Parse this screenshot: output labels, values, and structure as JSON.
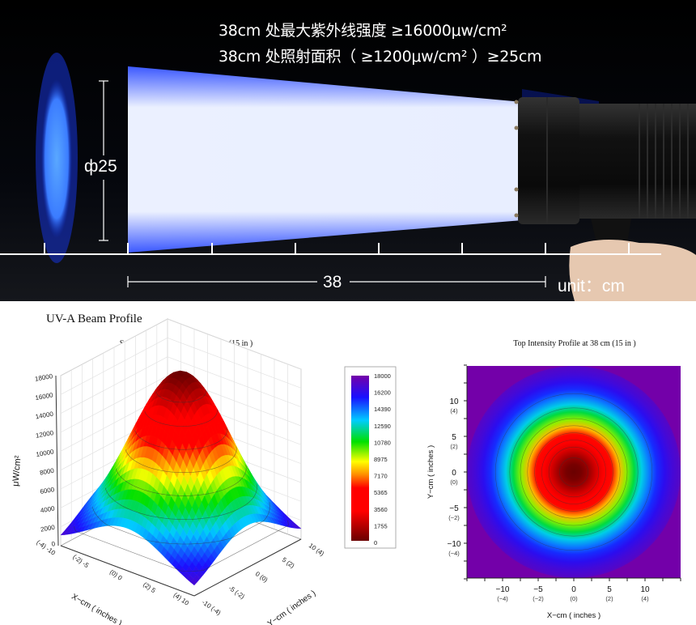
{
  "banner": {
    "spec_line_1": "38cm 处最大紫外线强度 ≥16000μw/cm²",
    "spec_line_2": "38cm 处照射面积（ ≥1200μw/cm² ）≥25cm",
    "diameter_label": "ф25",
    "distance_label": "38",
    "unit_label": "unit：cm",
    "beam_color": "#1a4cff"
  },
  "section_title": "UV-A Beam Profile",
  "chart_data": [
    {
      "type": "surface",
      "title": "Surface Contour Profile at 38 cm (15 in )",
      "zlabel": "μW/cm²",
      "xlabel": "X−cm ( inches )",
      "ylabel": "Y−cm ( inches )",
      "zlim": [
        0,
        18000
      ],
      "z_ticks": [
        "0",
        "2000",
        "4000",
        "6000",
        "8000",
        "10000",
        "12000",
        "14000",
        "16000",
        "18000"
      ],
      "x_ticks": [
        "(-4) -10",
        "(-2) -5",
        "(0) 0",
        "(2) 5",
        "(4) 10"
      ],
      "y_ticks": [
        "-10 (-4)",
        "-5 (-2)",
        "0 (0)",
        "5 (2)",
        "10 (4)"
      ],
      "xlim": [
        -10,
        10
      ],
      "ylim": [
        -10,
        10
      ],
      "peak": 18000,
      "peak_at": [
        0,
        0
      ],
      "sigma_cm": 6,
      "grid": true,
      "colorbar": {
        "labels": [
          "18000",
          "16200",
          "14390",
          "12590",
          "10780",
          "8975",
          "7170",
          "5365",
          "3560",
          "1755",
          "0"
        ],
        "colors": [
          "#7400a8",
          "#1a10ff",
          "#00ccff",
          "#00e000",
          "#ffff00",
          "#ff8c00",
          "#ff0000",
          "#ff0000",
          "#6a0000"
        ]
      }
    },
    {
      "type": "heatmap",
      "title": "Top Intensity Profile at 38 cm (15 in )",
      "xlabel": "X−cm ( inches )",
      "ylabel": "Y−cm ( inches )",
      "x_ticks": [
        {
          "cm": "−10",
          "in": "(−4)"
        },
        {
          "cm": "−5",
          "in": "(−2)"
        },
        {
          "cm": "0",
          "in": "(0)"
        },
        {
          "cm": "5",
          "in": "(2)"
        },
        {
          "cm": "10",
          "in": "(4)"
        }
      ],
      "y_ticks": [
        {
          "cm": "10",
          "in": "(4)"
        },
        {
          "cm": "5",
          "in": "(2)"
        },
        {
          "cm": "0",
          "in": "(0)"
        },
        {
          "cm": "−5",
          "in": "(−2)"
        },
        {
          "cm": "−10",
          "in": "(−4)"
        }
      ],
      "xlim": [
        -15,
        15
      ],
      "ylim": [
        -15,
        15
      ],
      "contour_radii_cm": [
        2,
        3.5,
        4.5,
        5.5,
        6.5,
        7.5,
        9,
        11
      ]
    }
  ]
}
